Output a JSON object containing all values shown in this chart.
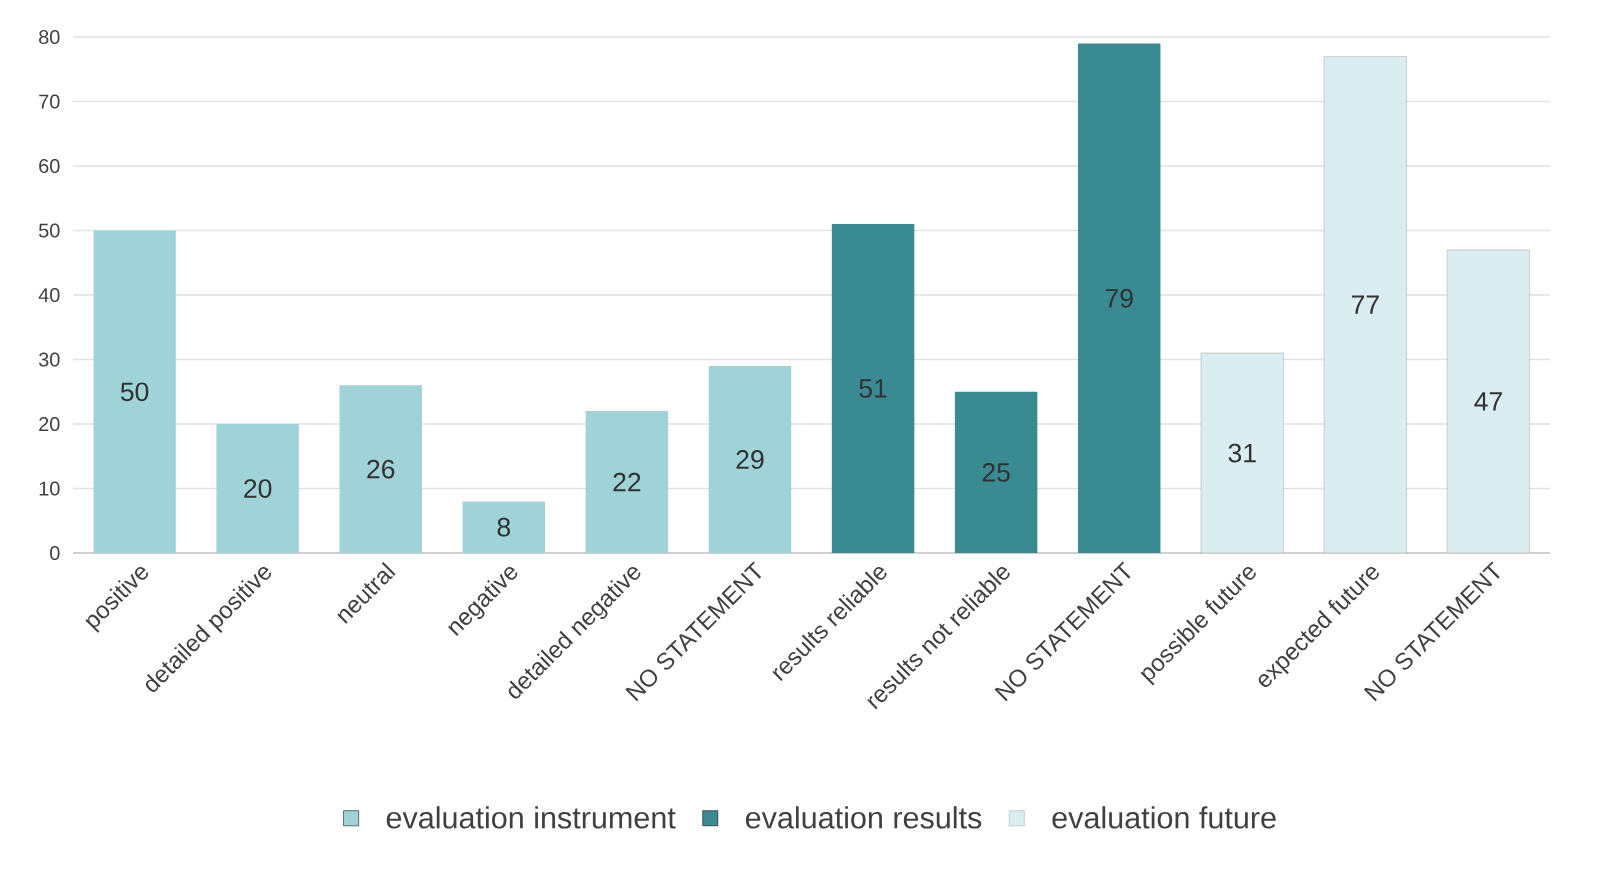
{
  "chart_data": {
    "type": "bar",
    "categories": [
      "positive",
      "detailed positive",
      "neutral",
      "negative",
      "detailed negative",
      "NO STATEMENT",
      "results reliable",
      "results not reliable",
      "NO STATEMENT",
      "possible future",
      "expected future",
      "NO STATEMENT"
    ],
    "series": [
      {
        "name": "evaluation instrument",
        "color": "#9fd3d8",
        "values": [
          50,
          20,
          26,
          8,
          22,
          29,
          null,
          null,
          null,
          null,
          null,
          null
        ]
      },
      {
        "name": "evaluation results",
        "color": "#3a8a91",
        "values": [
          null,
          null,
          null,
          null,
          null,
          null,
          51,
          25,
          79,
          null,
          null,
          null
        ]
      },
      {
        "name": "evaluation future",
        "color": "#daedf0",
        "values": [
          null,
          null,
          null,
          null,
          null,
          null,
          null,
          null,
          null,
          31,
          77,
          47
        ]
      }
    ],
    "ylim": [
      0,
      80
    ],
    "yticks": [
      0,
      10,
      20,
      30,
      40,
      50,
      60,
      70,
      80
    ],
    "grid": "y",
    "legend": "bottom",
    "data_labels": true
  }
}
